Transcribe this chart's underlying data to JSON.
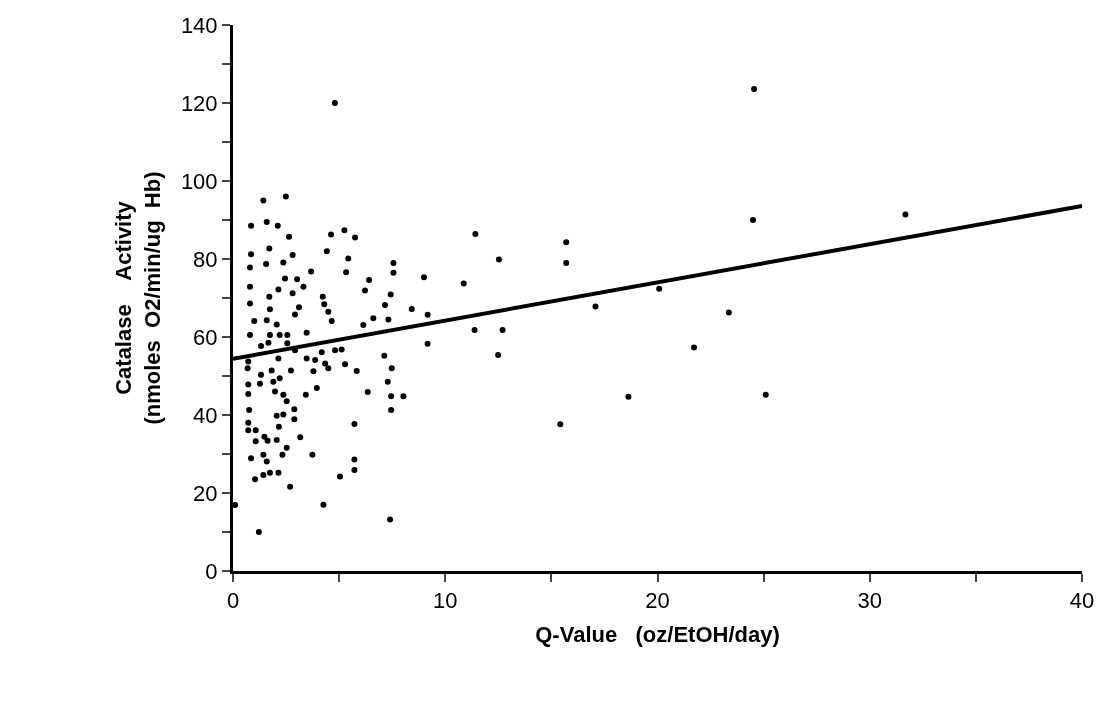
{
  "chart_data": {
    "type": "scatter",
    "xlabel": "Q-Value   (oz/EtOH/day)",
    "ylabel": "Catalase    Activity\n(nmoles  O2/min/ug  Hb)",
    "xlim": [
      0,
      40
    ],
    "ylim": [
      0,
      140
    ],
    "xticks": [
      0,
      {
        "value": 5,
        "label": null
      },
      10,
      {
        "value": 15,
        "label": null
      },
      20,
      {
        "value": 25,
        "label": null
      },
      30,
      {
        "value": 35,
        "label": null
      },
      40
    ],
    "yticks": [
      0,
      {
        "value": 10,
        "label": null
      },
      20,
      {
        "value": 30,
        "label": null
      },
      40,
      {
        "value": 50,
        "label": null
      },
      60,
      {
        "value": 70,
        "label": null
      },
      80,
      {
        "value": 90,
        "label": null
      },
      100,
      {
        "value": 110,
        "label": null
      },
      120,
      {
        "value": 130,
        "label": null
      },
      140
    ],
    "series": [
      {
        "color": "#000000",
        "marker": "circle",
        "x": [
          1.43,
          2.49,
          0.85,
          1.59,
          2.11,
          2.64,
          4.62,
          5.25,
          5.75,
          1.71,
          0.85,
          4.42,
          2.81,
          5.43,
          0.8,
          1.56,
          2.37,
          3.68,
          5.33,
          7.56,
          7.56,
          2.45,
          3.02,
          6.41,
          9.0,
          0.8,
          2.14,
          3.32,
          6.22,
          7.43,
          1.71,
          2.81,
          4.23,
          0.8,
          7.16,
          8.42,
          4.3,
          4.49,
          1.74,
          2.92,
          3.11,
          1.0,
          1.59,
          2.06,
          4.65,
          6.61,
          7.32,
          6.14,
          3.47,
          0.8,
          1.32,
          1.67,
          1.74,
          2.2,
          2.56,
          2.56,
          2.92,
          2.14,
          0.72,
          7.13,
          5.12,
          4.81,
          4.18,
          3.47,
          3.87,
          4.34,
          5.28,
          0.69,
          1.32,
          1.82,
          2.73,
          3.79,
          4.49,
          5.83,
          7.48,
          1.27,
          1.9,
          2.2,
          0.72,
          1.98,
          2.37,
          3.43,
          3.95,
          6.35,
          7.29,
          7.45,
          8.03,
          0.72,
          2.53,
          2.89,
          0.76,
          7.45,
          2.06,
          2.37,
          2.89,
          0.72,
          5.72,
          2.16,
          0.72,
          1.07,
          1.07,
          1.48,
          1.63,
          2.06,
          3.17,
          2.53,
          0.85,
          1.43,
          1.59,
          2.33,
          3.74,
          5.72,
          5.72,
          1.04,
          1.43,
          1.74,
          2.14,
          5.04,
          2.69,
          4.26,
          7.4,
          24.55,
          24.5,
          31.68,
          11.42,
          12.53,
          15.7,
          15.7,
          10.87,
          9.17,
          17.08,
          20.08,
          23.36,
          11.38,
          12.7,
          9.17,
          12.49,
          21.72,
          18.63,
          25.1,
          15.42,
          4.8,
          0.1,
          1.22
        ],
        "values": [
          95,
          96,
          88.5,
          89.5,
          88.5,
          85.7,
          86.3,
          87.4,
          85.5,
          82.7,
          81.2,
          82,
          81,
          80.1,
          77.8,
          78.7,
          79.1,
          76.8,
          76.6,
          79,
          76.5,
          75,
          74.8,
          74.6,
          75.3,
          72.9,
          72.2,
          72.9,
          71.9,
          70.9,
          70.3,
          71.2,
          70.3,
          68.6,
          68.2,
          67.2,
          68.4,
          66.5,
          67.1,
          65.8,
          67.6,
          64.1,
          64.3,
          63.2,
          64.1,
          64.8,
          64.5,
          63.1,
          61.1,
          60.5,
          57.7,
          58.5,
          60.5,
          60.5,
          60.5,
          58.4,
          56.6,
          54.5,
          53.7,
          55.2,
          56.8,
          56.6,
          56.1,
          54.5,
          54.1,
          53.2,
          53,
          52,
          50.3,
          51.4,
          51.4,
          51.2,
          52,
          51.3,
          52,
          48,
          48.5,
          49.4,
          47.8,
          46,
          45.2,
          45.2,
          46.9,
          45.9,
          48.5,
          44.8,
          44.8,
          45.4,
          43.5,
          41.5,
          41.3,
          41.3,
          39.8,
          40.1,
          38.9,
          38,
          37.7,
          37,
          36.1,
          36.1,
          33.3,
          34.4,
          33.4,
          33.6,
          34.3,
          31.6,
          28.9,
          29.8,
          28.1,
          29.8,
          29.8,
          28.6,
          25.9,
          23.5,
          24.6,
          25.2,
          25.2,
          24.2,
          21.6,
          17,
          13.2,
          123.6,
          90,
          91.4,
          86.4,
          79.9,
          84.3,
          79,
          73.7,
          65.7,
          67.8,
          72.4,
          66.3,
          61.8,
          61.8,
          58.3,
          55.4,
          57.3,
          44.7,
          45.2,
          37.6,
          120,
          16.9,
          10
        ]
      },
      {
        "type": "line",
        "color": "#000000",
        "marker": "none",
        "line_style": "solid",
        "x": [
          0,
          40
        ],
        "values": [
          54.4,
          93.6
        ]
      }
    ]
  }
}
